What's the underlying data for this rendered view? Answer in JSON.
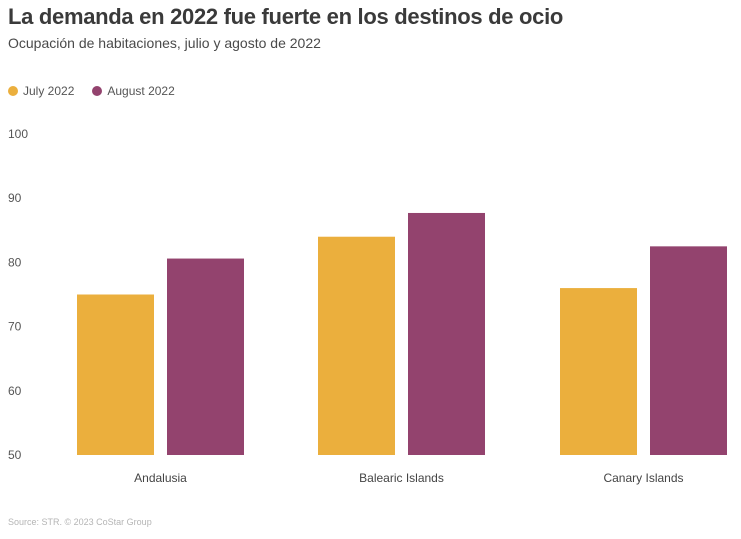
{
  "chart_data": {
    "type": "bar",
    "title": "La demanda en 2022 fue fuerte en los destinos de ocio",
    "subtitle": "Ocupación de habitaciones, julio y agosto de 2022",
    "categories": [
      "Andalusia",
      "Balearic Islands",
      "Canary Islands"
    ],
    "series": [
      {
        "name": "July 2022",
        "color": "#EBAF3D",
        "values": [
          75.0,
          84.0,
          76.0
        ]
      },
      {
        "name": "August 2022",
        "color": "#93436E",
        "values": [
          80.6,
          87.7,
          82.5
        ]
      }
    ],
    "ylim": [
      50,
      100
    ],
    "yticks": [
      "50",
      "60",
      "70",
      "80",
      "90",
      "100"
    ],
    "grid": false,
    "legend_position": "top-left",
    "source": "Source: STR. © 2023 CoStar Group"
  }
}
